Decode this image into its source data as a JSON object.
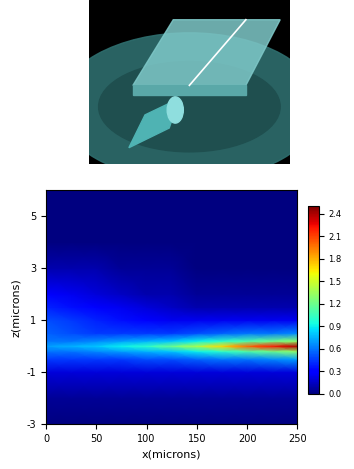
{
  "chart_data": {
    "type": "heatmap",
    "xlabel": "x(microns)",
    "ylabel": "z(microns)",
    "xlim": [
      0,
      250
    ],
    "xticks": [
      0,
      50,
      100,
      150,
      200,
      250
    ],
    "ylim": [
      -3,
      6
    ],
    "yticks": [
      -3,
      -1,
      1,
      3,
      5
    ],
    "x": [
      0,
      25,
      50,
      75,
      100,
      125,
      150,
      175,
      200,
      225,
      250
    ],
    "y": [
      -3,
      -2,
      -1,
      -0.5,
      -0.2,
      0,
      0.2,
      0.5,
      1,
      1.5,
      2,
      3,
      4,
      5,
      6
    ],
    "cells": [
      [
        0,
        0,
        0,
        0,
        0,
        0,
        0,
        0,
        0,
        0,
        0
      ],
      [
        0.05,
        0.05,
        0.05,
        0.05,
        0.05,
        0.05,
        0.05,
        0.05,
        0.05,
        0.05,
        0.05
      ],
      [
        0.2,
        0.2,
        0.2,
        0.2,
        0.2,
        0.2,
        0.2,
        0.2,
        0.2,
        0.2,
        0.2
      ],
      [
        0.45,
        0.45,
        0.45,
        0.45,
        0.5,
        0.5,
        0.55,
        0.6,
        0.6,
        0.65,
        0.7
      ],
      [
        0.6,
        0.6,
        0.65,
        0.7,
        0.75,
        0.8,
        0.9,
        1.0,
        1.1,
        1.2,
        1.3
      ],
      [
        0.7,
        0.75,
        0.8,
        0.9,
        1.0,
        1.2,
        1.4,
        1.7,
        2.0,
        2.2,
        2.4
      ],
      [
        0.6,
        0.6,
        0.65,
        0.7,
        0.75,
        0.8,
        0.9,
        1.0,
        1.1,
        1.2,
        1.3
      ],
      [
        0.55,
        0.5,
        0.45,
        0.45,
        0.45,
        0.45,
        0.5,
        0.55,
        0.6,
        0.6,
        0.65
      ],
      [
        0.5,
        0.45,
        0.4,
        0.35,
        0.3,
        0.25,
        0.25,
        0.25,
        0.25,
        0.25,
        0.25
      ],
      [
        0.4,
        0.35,
        0.3,
        0.25,
        0.2,
        0.15,
        0.1,
        0.1,
        0.1,
        0.1,
        0.1
      ],
      [
        0.3,
        0.25,
        0.2,
        0.15,
        0.1,
        0.1,
        0.05,
        0.05,
        0.05,
        0.05,
        0.05
      ],
      [
        0.1,
        0.1,
        0.1,
        0.05,
        0.05,
        0.05,
        0,
        0,
        0,
        0,
        0
      ],
      [
        0,
        0,
        0,
        0,
        0,
        0,
        0,
        0,
        0,
        0,
        0
      ],
      [
        0,
        0,
        0,
        0,
        0,
        0,
        0,
        0,
        0,
        0,
        0
      ],
      [
        0,
        0,
        0,
        0,
        0,
        0,
        0,
        0,
        0,
        0,
        0
      ]
    ],
    "colorbar_range": [
      0,
      2.5
    ],
    "colorbar_ticks": [
      {
        "value": 0,
        "label": "0.0"
      },
      0.3,
      0.6,
      0.9,
      1.2,
      1.5,
      1.8,
      2.1,
      2.4
    ]
  }
}
